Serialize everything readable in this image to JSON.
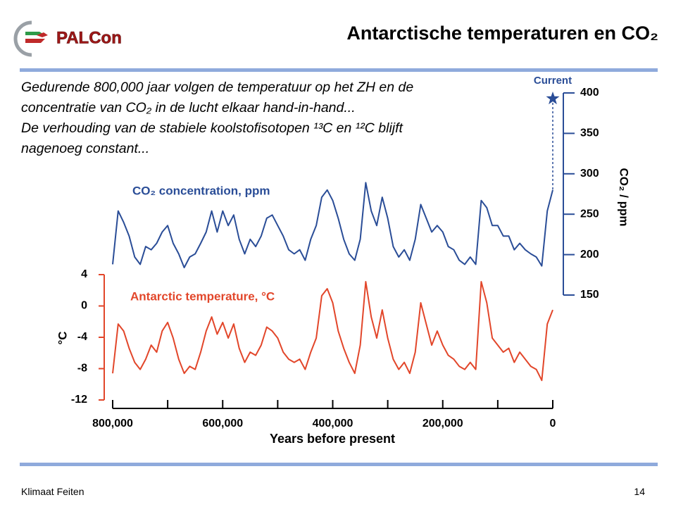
{
  "header": {
    "logo": "PALCon",
    "title": "Antarctische temperaturen en CO₂"
  },
  "body": [
    "Gedurende 800,000 jaar volgen de temperatuur op het ZH en de",
    "concentratie van CO₂ in de lucht elkaar hand-in-hand...",
    "De verhouding van de stabiele koolstofisotopen ¹³C en ¹²C blijft",
    "nagenoeg constant..."
  ],
  "chart_data": {
    "type": "line",
    "x_label": "Years before present",
    "y_label": "°C",
    "y2_label": "CO₂ / ppm",
    "x": [
      800000,
      790000,
      780000,
      770000,
      760000,
      750000,
      740000,
      730000,
      720000,
      710000,
      700000,
      690000,
      680000,
      670000,
      660000,
      650000,
      640000,
      630000,
      620000,
      610000,
      600000,
      590000,
      580000,
      570000,
      560000,
      550000,
      540000,
      530000,
      520000,
      510000,
      500000,
      490000,
      480000,
      470000,
      460000,
      450000,
      440000,
      430000,
      420000,
      410000,
      400000,
      390000,
      380000,
      370000,
      360000,
      350000,
      340000,
      330000,
      320000,
      310000,
      300000,
      290000,
      280000,
      270000,
      260000,
      250000,
      240000,
      230000,
      220000,
      210000,
      200000,
      190000,
      180000,
      170000,
      160000,
      150000,
      140000,
      130000,
      120000,
      110000,
      100000,
      90000,
      80000,
      70000,
      60000,
      50000,
      40000,
      30000,
      20000,
      10000,
      0
    ],
    "xlim": [
      800000,
      0
    ],
    "xticks": [
      {
        "value": 800000,
        "label": "800,000"
      },
      {
        "value": 600000,
        "label": "600,000"
      },
      {
        "value": 400000,
        "label": "400,000"
      },
      {
        "value": 200000,
        "label": "200,000"
      },
      0
    ],
    "xminor_ticks": [
      700000,
      500000,
      300000,
      100000
    ],
    "ylim": [
      -12,
      4
    ],
    "yticks": [
      4,
      0,
      -4,
      -8,
      -12
    ],
    "y2lim": [
      150,
      400
    ],
    "y2ticks": [
      400,
      350,
      300,
      250,
      200,
      150
    ],
    "series": [
      {
        "name": "CO₂ concentration, ppm",
        "color": "#2a4d97",
        "axis": "y2",
        "values": [
          188,
          254,
          240,
          223,
          197,
          188,
          210,
          206,
          214,
          228,
          236,
          214,
          201,
          184,
          197,
          201,
          214,
          228,
          254,
          228,
          254,
          236,
          249,
          219,
          201,
          219,
          210,
          223,
          245,
          249,
          236,
          223,
          206,
          201,
          206,
          193,
          219,
          236,
          271,
          280,
          267,
          245,
          219,
          201,
          193,
          219,
          289,
          254,
          236,
          271,
          245,
          210,
          197,
          206,
          193,
          219,
          262,
          245,
          228,
          236,
          228,
          210,
          206,
          193,
          188,
          197,
          188,
          267,
          258,
          236,
          236,
          223,
          223,
          206,
          214,
          206,
          201,
          197,
          186,
          254,
          280
        ]
      },
      {
        "name": "Antarctic temperature, °C",
        "color": "#e2462a",
        "values": [
          -8.6,
          -2.3,
          -3.2,
          -5.4,
          -7.2,
          -8.1,
          -6.8,
          -5.0,
          -5.9,
          -3.2,
          -2.1,
          -4.1,
          -6.8,
          -8.6,
          -7.7,
          -8.1,
          -5.9,
          -3.2,
          -1.4,
          -3.6,
          -2.1,
          -4.1,
          -2.3,
          -5.4,
          -7.2,
          -5.9,
          -6.3,
          -5.0,
          -2.7,
          -3.2,
          -4.1,
          -5.9,
          -6.8,
          -7.2,
          -6.8,
          -8.1,
          -5.9,
          -4.1,
          1.3,
          2.2,
          0.4,
          -3.2,
          -5.4,
          -7.2,
          -8.6,
          -5.0,
          3.1,
          -1.4,
          -4.1,
          -0.5,
          -4.1,
          -6.8,
          -8.1,
          -7.2,
          -8.6,
          -5.9,
          0.4,
          -2.3,
          -5.0,
          -3.2,
          -5.0,
          -6.3,
          -6.8,
          -7.7,
          -8.1,
          -7.2,
          -8.1,
          3.1,
          0.4,
          -4.1,
          -5.0,
          -5.9,
          -5.4,
          -7.2,
          -5.9,
          -6.8,
          -7.7,
          -8.1,
          -9.5,
          -2.3,
          -0.5
        ]
      }
    ],
    "current": {
      "label": "Current",
      "x": 0,
      "value": 393,
      "color": "#2a4d97"
    }
  },
  "footer": {
    "left": "Klimaat Feiten",
    "page": "14"
  }
}
